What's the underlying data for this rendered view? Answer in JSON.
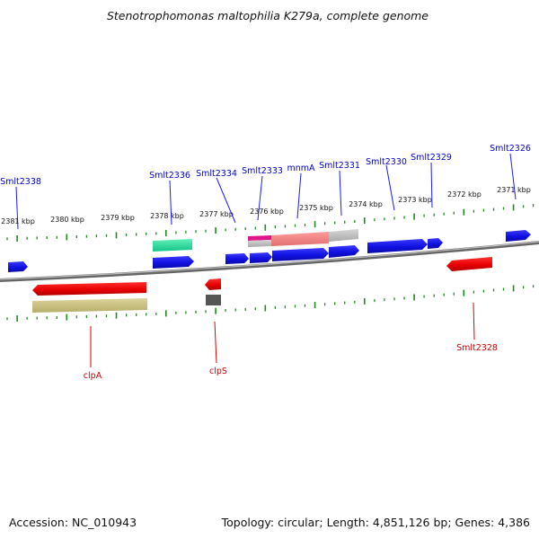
{
  "title": "Stenotrophomonas maltophilia K279a, complete genome",
  "footer": {
    "accession": "Accession: NC_010943",
    "summary": "Topology: circular; Length: 4,851,126 bp; Genes: 4,386"
  },
  "colors": {
    "forward_gene": "#1414e6",
    "reverse_gene": "#e60000",
    "tick": "#1f8a1f",
    "backbone": "#666666",
    "forward_label": "#0000cc",
    "reverse_label": "#cc0000"
  },
  "scale_ticks": [
    {
      "kbp": 2381,
      "label": "2381 kbp"
    },
    {
      "kbp": 2380,
      "label": "2380 kbp"
    },
    {
      "kbp": 2379,
      "label": "2379 kbp"
    },
    {
      "kbp": 2378,
      "label": "2378 kbp"
    },
    {
      "kbp": 2377,
      "label": "2377 kbp"
    },
    {
      "kbp": 2376,
      "label": "2376 kbp"
    },
    {
      "kbp": 2375,
      "label": "2375 kbp"
    },
    {
      "kbp": 2374,
      "label": "2374 kbp"
    },
    {
      "kbp": 2373,
      "label": "2373 kbp"
    },
    {
      "kbp": 2372,
      "label": "2372 kbp"
    },
    {
      "kbp": 2371,
      "label": "2371 kbp"
    }
  ],
  "gene_labels": {
    "forward": [
      "Smlt2338",
      "Smlt2336",
      "Smlt2334",
      "Smlt2333",
      "mnmA",
      "Smlt2331",
      "Smlt2330",
      "Smlt2329",
      "Smlt2326"
    ],
    "reverse": [
      "clpA",
      "clpS",
      "Smlt2328"
    ]
  }
}
